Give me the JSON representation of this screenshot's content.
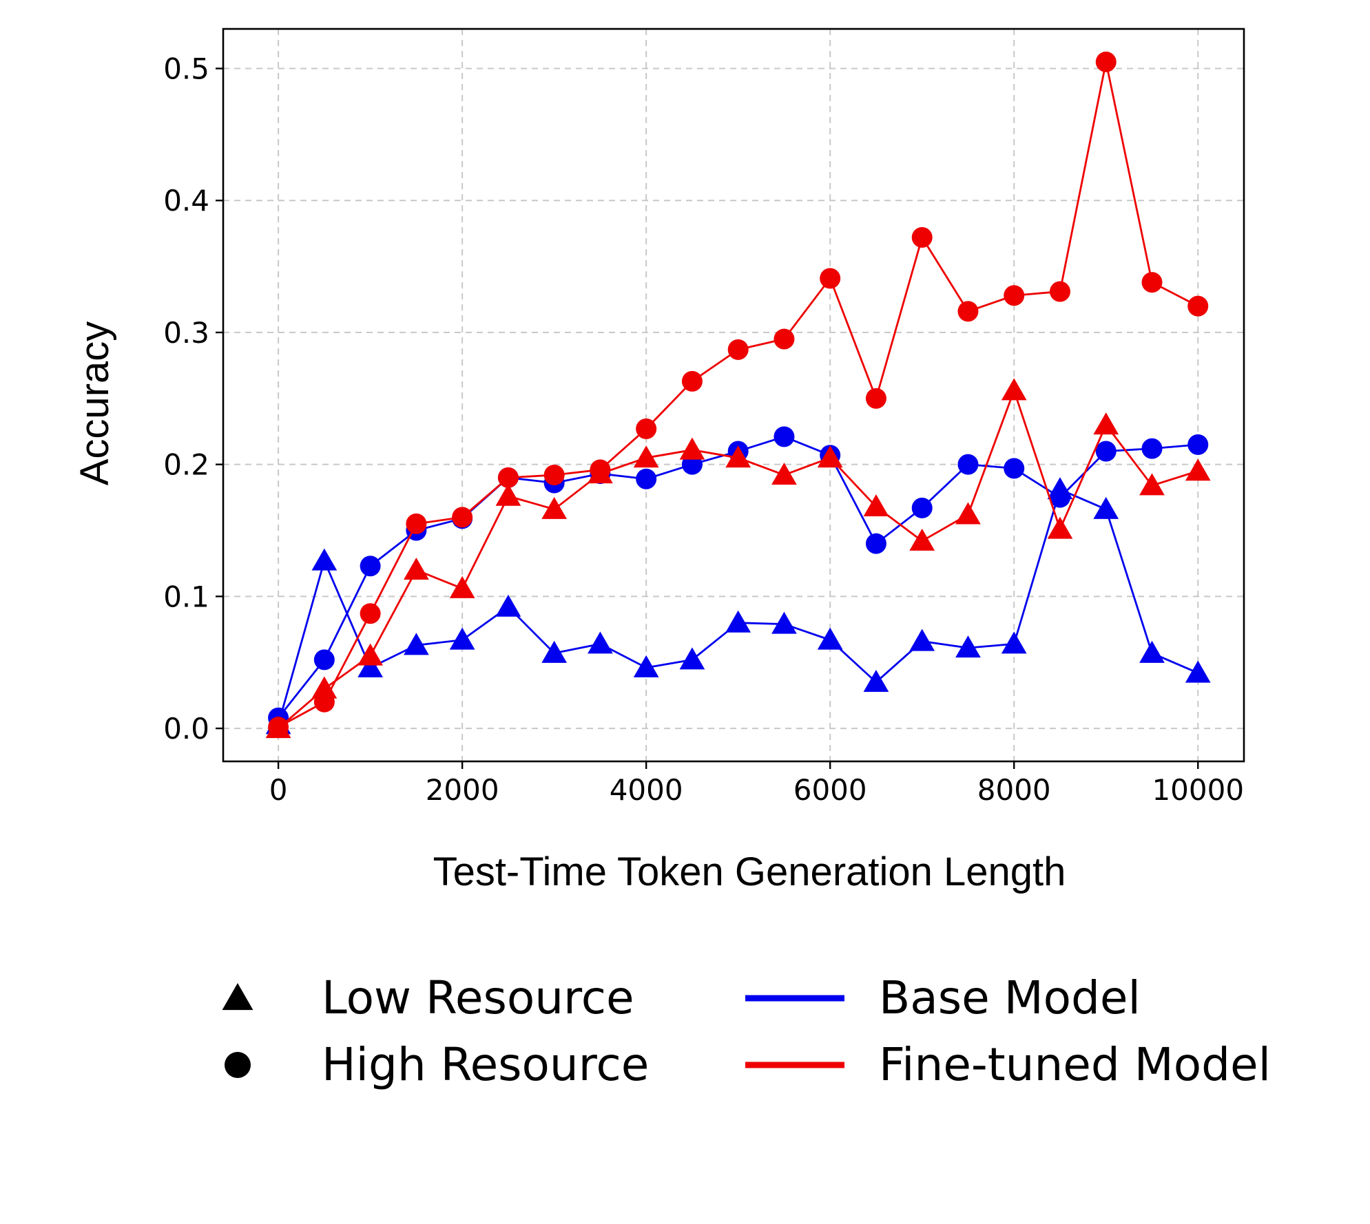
{
  "chart_data": {
    "type": "line",
    "title": "",
    "xlabel": "Test-Time Token Generation Length",
    "ylabel": "Accuracy",
    "xlim": [
      -600,
      10500
    ],
    "ylim": [
      -0.025,
      0.53
    ],
    "xticks": [
      0,
      2000,
      4000,
      6000,
      8000,
      10000
    ],
    "xtick_labels": [
      "0",
      "2000",
      "4000",
      "6000",
      "8000",
      "10000"
    ],
    "yticks": [
      0.0,
      0.1,
      0.2,
      0.3,
      0.4,
      0.5
    ],
    "ytick_labels": [
      "0.0",
      "0.1",
      "0.2",
      "0.3",
      "0.4",
      "0.5"
    ],
    "grid": true,
    "legend_position": "bottom",
    "x": [
      0,
      500,
      1000,
      1500,
      2000,
      2500,
      3000,
      3500,
      4000,
      4500,
      5000,
      5500,
      6000,
      6500,
      7000,
      7500,
      8000,
      8500,
      9000,
      9500,
      10000
    ],
    "series": [
      {
        "model": "Base Model",
        "resource": "Low Resource",
        "color": "#0000ee",
        "marker": "triangle",
        "values": [
          0.003,
          0.127,
          0.046,
          0.063,
          0.067,
          0.092,
          0.057,
          0.064,
          0.046,
          0.052,
          0.08,
          0.079,
          0.067,
          0.035,
          0.066,
          0.061,
          0.064,
          0.181,
          0.166,
          0.057,
          0.042
        ]
      },
      {
        "model": "Base Model",
        "resource": "High Resource",
        "color": "#0000ee",
        "marker": "circle",
        "values": [
          0.008,
          0.052,
          0.123,
          0.15,
          0.159,
          0.19,
          0.186,
          0.193,
          0.189,
          0.2,
          0.21,
          0.221,
          0.207,
          0.14,
          0.167,
          0.2,
          0.197,
          0.175,
          0.21,
          0.212,
          0.215
        ]
      },
      {
        "model": "Fine-tuned Model",
        "resource": "Low Resource",
        "color": "#ee0000",
        "marker": "triangle",
        "values": [
          0.0,
          0.03,
          0.055,
          0.12,
          0.106,
          0.176,
          0.166,
          0.193,
          0.205,
          0.211,
          0.205,
          0.192,
          0.205,
          0.168,
          0.142,
          0.162,
          0.256,
          0.151,
          0.23,
          0.184,
          0.195
        ]
      },
      {
        "model": "Fine-tuned Model",
        "resource": "High Resource",
        "color": "#ee0000",
        "marker": "circle",
        "values": [
          0.001,
          0.02,
          0.087,
          0.155,
          0.16,
          0.19,
          0.192,
          0.196,
          0.227,
          0.263,
          0.287,
          0.295,
          0.341,
          0.25,
          0.372,
          0.316,
          0.328,
          0.331,
          0.505,
          0.338,
          0.32
        ]
      }
    ],
    "legend": {
      "markers": [
        {
          "label": "Low Resource",
          "marker": "triangle"
        },
        {
          "label": "High Resource",
          "marker": "circle"
        }
      ],
      "lines": [
        {
          "label": "Base Model",
          "color": "#0000ee"
        },
        {
          "label": "Fine-tuned Model",
          "color": "#ee0000"
        }
      ]
    }
  }
}
